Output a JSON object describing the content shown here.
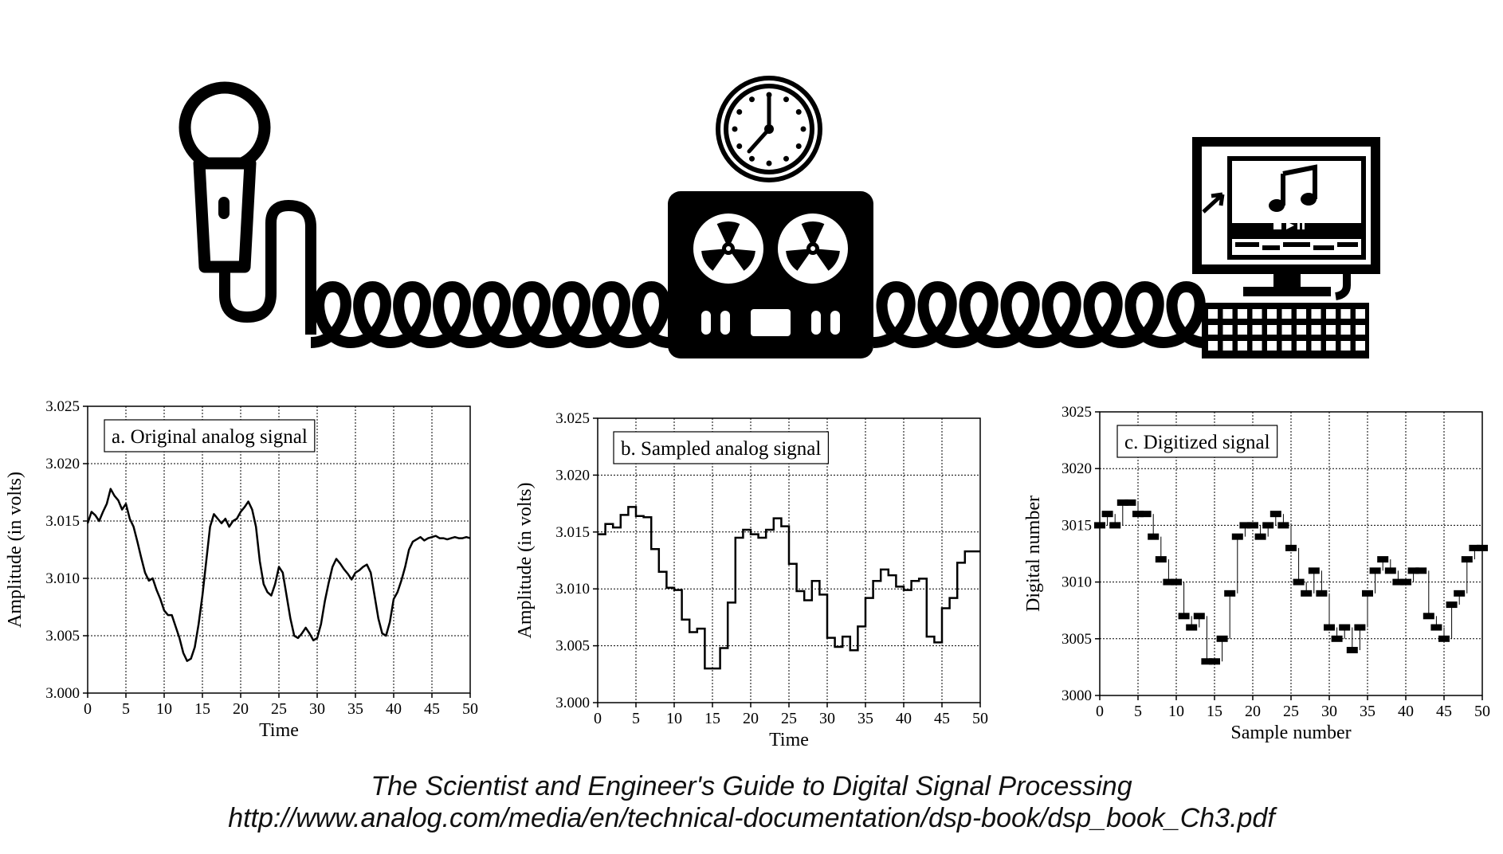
{
  "chart_data": [
    {
      "type": "line",
      "title": "a. Original analog signal",
      "xlabel": "Time",
      "ylabel": "Amplitude (in volts)",
      "xlim": [
        0,
        50
      ],
      "ylim": [
        3.0,
        3.025
      ],
      "xticks": [
        "0",
        "5",
        "10",
        "15",
        "20",
        "25",
        "30",
        "35",
        "40",
        "45",
        "50"
      ],
      "yticks": [
        "3.000",
        "3.005",
        "3.010",
        "3.015",
        "3.020",
        "3.025"
      ],
      "grid": true,
      "legend": "top-left",
      "x": [
        0,
        0.5,
        1,
        1.5,
        2,
        2.5,
        3,
        3.5,
        4,
        4.5,
        5,
        5.5,
        6,
        6.5,
        7,
        7.5,
        8,
        8.5,
        9,
        9.5,
        10,
        10.5,
        11,
        11.5,
        12,
        12.5,
        13,
        13.5,
        14,
        14.5,
        15,
        15.5,
        16,
        16.5,
        17,
        17.5,
        18,
        18.5,
        19,
        19.5,
        20,
        20.5,
        21,
        21.5,
        22,
        22.5,
        23,
        23.5,
        24,
        24.5,
        25,
        25.5,
        26,
        26.5,
        27,
        27.5,
        28,
        28.5,
        29,
        29.5,
        30,
        30.5,
        31,
        31.5,
        32,
        32.5,
        33,
        33.5,
        34,
        34.5,
        35,
        35.5,
        36,
        36.5,
        37,
        37.5,
        38,
        38.5,
        39,
        39.5,
        40,
        40.5,
        41,
        41.5,
        42,
        42.5,
        43,
        43.5,
        44,
        44.5,
        45,
        45.5,
        46,
        46.5,
        47,
        47.5,
        48,
        48.5,
        49,
        49.5,
        50
      ],
      "y": [
        3.0148,
        3.0158,
        3.0155,
        3.015,
        3.0158,
        3.0165,
        3.0178,
        3.0172,
        3.0168,
        3.016,
        3.0165,
        3.0152,
        3.0145,
        3.0132,
        3.0118,
        3.0105,
        3.0098,
        3.01,
        3.009,
        3.0082,
        3.0072,
        3.0068,
        3.0068,
        3.0058,
        3.0048,
        3.0035,
        3.0028,
        3.003,
        3.004,
        3.006,
        3.0085,
        3.0115,
        3.0145,
        3.0156,
        3.0152,
        3.0148,
        3.0152,
        3.0145,
        3.015,
        3.0152,
        3.0158,
        3.0162,
        3.0167,
        3.016,
        3.0145,
        3.0115,
        3.0095,
        3.0088,
        3.0085,
        3.0095,
        3.011,
        3.0105,
        3.0085,
        3.0065,
        3.005,
        3.0048,
        3.0052,
        3.0057,
        3.0052,
        3.0046,
        3.0048,
        3.006,
        3.008,
        3.0096,
        3.011,
        3.0117,
        3.0113,
        3.0108,
        3.0104,
        3.0099,
        3.0105,
        3.0107,
        3.011,
        3.0112,
        3.0105,
        3.0085,
        3.0065,
        3.0052,
        3.005,
        3.0062,
        3.0082,
        3.0088,
        3.0098,
        3.011,
        3.0125,
        3.0132,
        3.0134,
        3.0136,
        3.0133,
        3.0135,
        3.0136,
        3.0137,
        3.0135,
        3.0135,
        3.0134,
        3.0135,
        3.0136,
        3.0135,
        3.0135,
        3.0136,
        3.0135
      ]
    },
    {
      "type": "line",
      "title": "b. Sampled analog signal",
      "xlabel": "Time",
      "ylabel": "Amplitude (in volts)",
      "xlim": [
        0,
        50
      ],
      "ylim": [
        3.0,
        3.025
      ],
      "xticks": [
        "0",
        "5",
        "10",
        "15",
        "20",
        "25",
        "30",
        "35",
        "40",
        "45",
        "50"
      ],
      "yticks": [
        "3.000",
        "3.005",
        "3.010",
        "3.015",
        "3.020",
        "3.025"
      ],
      "grid": true,
      "legend": "top-left",
      "step": true,
      "values": [
        3.0148,
        3.0157,
        3.0154,
        3.0165,
        3.0172,
        3.0164,
        3.0163,
        3.0135,
        3.0115,
        3.0101,
        3.0099,
        3.0073,
        3.0062,
        3.0065,
        3.003,
        3.003,
        3.0048,
        3.0088,
        3.0145,
        3.0152,
        3.0148,
        3.0145,
        3.0152,
        3.0162,
        3.0155,
        3.0122,
        3.0098,
        3.009,
        3.0107,
        3.0095,
        3.0057,
        3.0049,
        3.0058,
        3.0046,
        3.0067,
        3.0092,
        3.0107,
        3.0117,
        3.0112,
        3.0102,
        3.0099,
        3.0107,
        3.0109,
        3.0058,
        3.0053,
        3.0083,
        3.0092,
        3.0123,
        3.0133,
        3.0133,
        3.0133
      ]
    },
    {
      "type": "scatter",
      "title": "c. Digitized signal",
      "xlabel": "Sample number",
      "ylabel": "Digital number",
      "xlim": [
        0,
        50
      ],
      "ylim": [
        3000,
        3025
      ],
      "xticks": [
        "0",
        "5",
        "10",
        "15",
        "20",
        "25",
        "30",
        "35",
        "40",
        "45",
        "50"
      ],
      "yticks": [
        "3000",
        "3005",
        "3010",
        "3015",
        "3020",
        "3025"
      ],
      "grid": true,
      "legend": "top-left",
      "values": [
        3015,
        3016,
        3015,
        3017,
        3017,
        3016,
        3016,
        3014,
        3012,
        3010,
        3010,
        3007,
        3006,
        3007,
        3003,
        3003,
        3005,
        3009,
        3014,
        3015,
        3015,
        3014,
        3015,
        3016,
        3015,
        3013,
        3010,
        3009,
        3011,
        3009,
        3006,
        3005,
        3006,
        3004,
        3006,
        3009,
        3011,
        3012,
        3011,
        3010,
        3010,
        3011,
        3011,
        3007,
        3006,
        3005,
        3008,
        3009,
        3012,
        3013,
        3013
      ]
    }
  ],
  "illustration": {
    "microphone_icon": "microphone-icon",
    "clock_icon": "clock-icon",
    "reel_to_reel_icon": "tape-recorder-icon",
    "computer_icon": "computer-icon"
  },
  "footer": {
    "book_title": "The Scientist and Engineer's Guide to Digital Signal Processing",
    "url": "http://www.analog.com/media/en/technical-documentation/dsp-book/dsp_book_Ch3.pdf"
  }
}
